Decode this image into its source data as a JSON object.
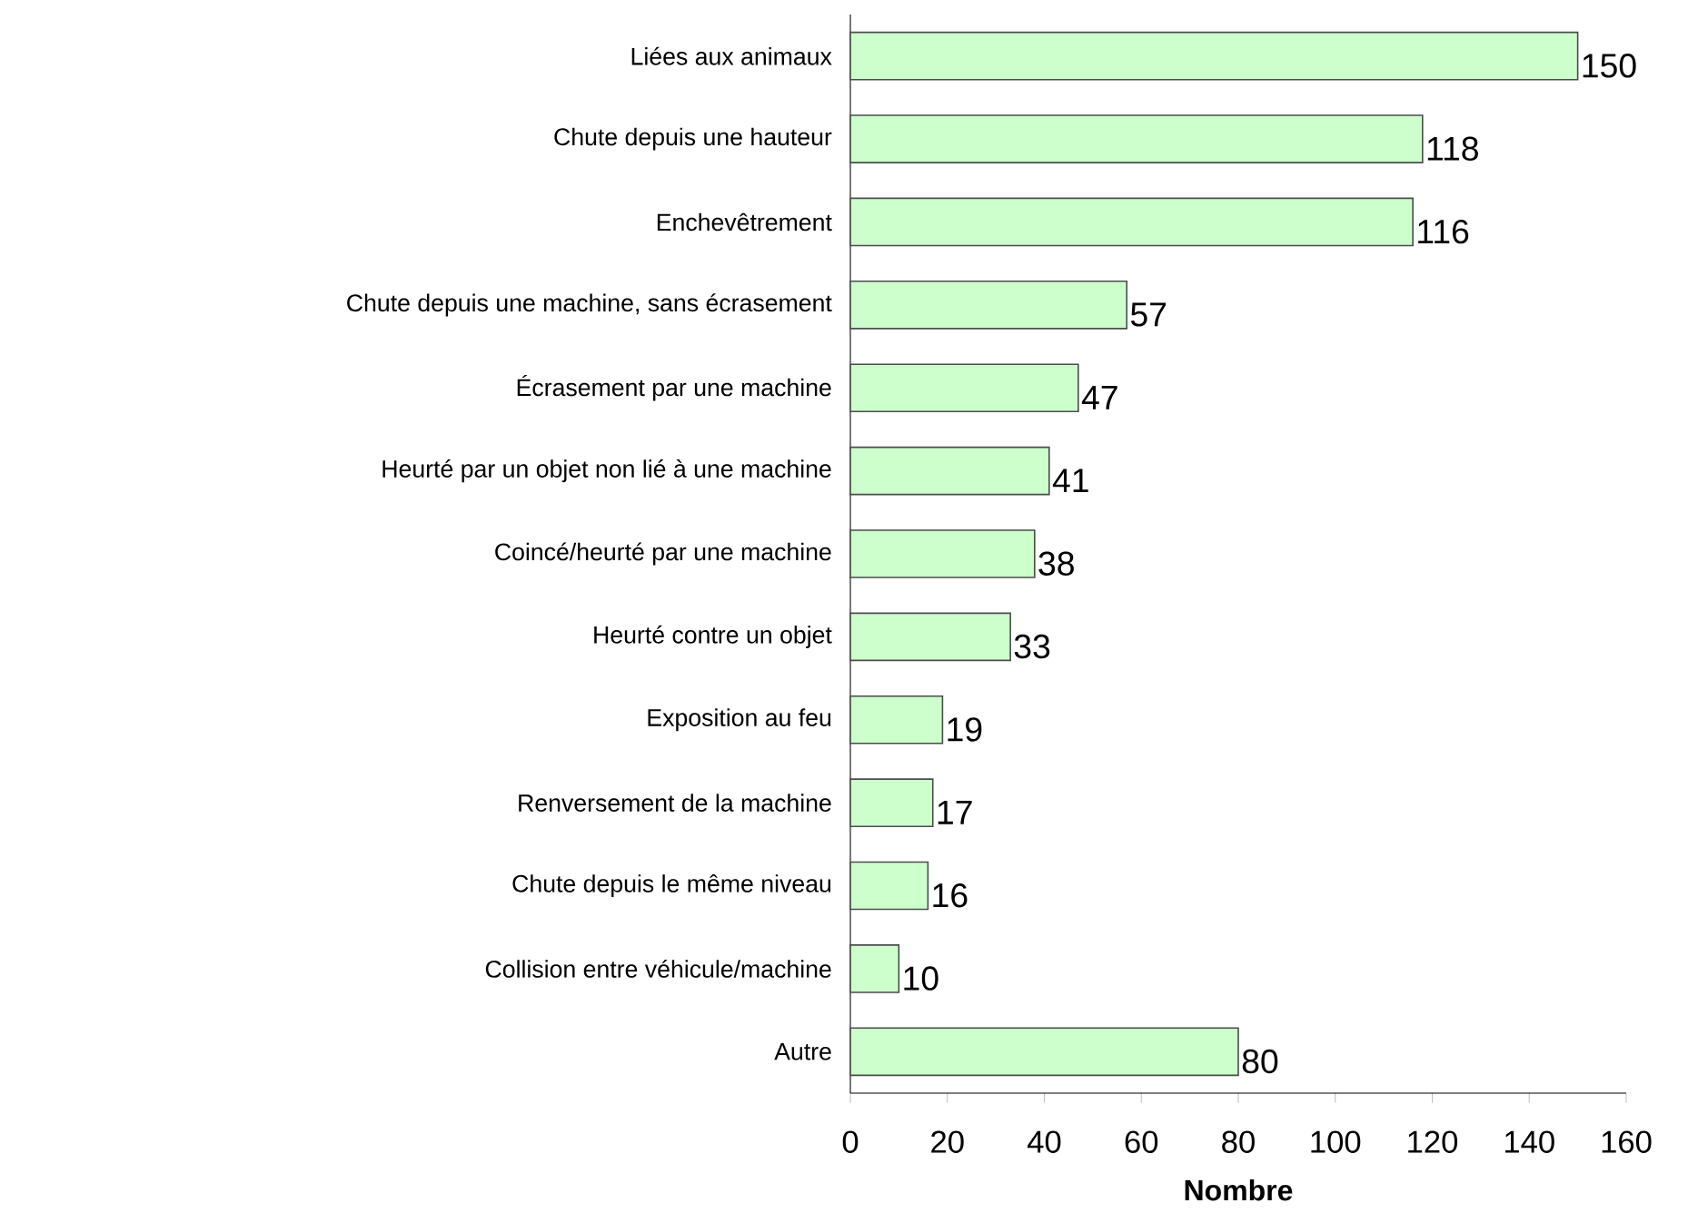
{
  "chart_data": {
    "type": "bar",
    "orientation": "horizontal",
    "xlabel": "Nombre",
    "categories": [
      "Liées aux animaux",
      "Chute depuis une hauteur",
      "Enchevêtrement",
      "Chute depuis une machine, sans écrasement",
      "Écrasement par une machine",
      "Heurté par un objet non lié à une machine",
      "Coincé/heurté par une machine",
      "Heurté contre un objet",
      "Exposition au feu",
      "Renversement de la machine",
      "Chute depuis le même niveau",
      "Collision entre véhicule/machine",
      "Autre"
    ],
    "values": [
      150,
      118,
      116,
      57,
      47,
      41,
      38,
      33,
      19,
      17,
      16,
      10,
      80
    ],
    "color": "#ccffcc",
    "data_labels": true,
    "xlim": [
      0,
      160
    ],
    "xticks": [
      0,
      20,
      40,
      60,
      80,
      100,
      120,
      140,
      160
    ]
  }
}
